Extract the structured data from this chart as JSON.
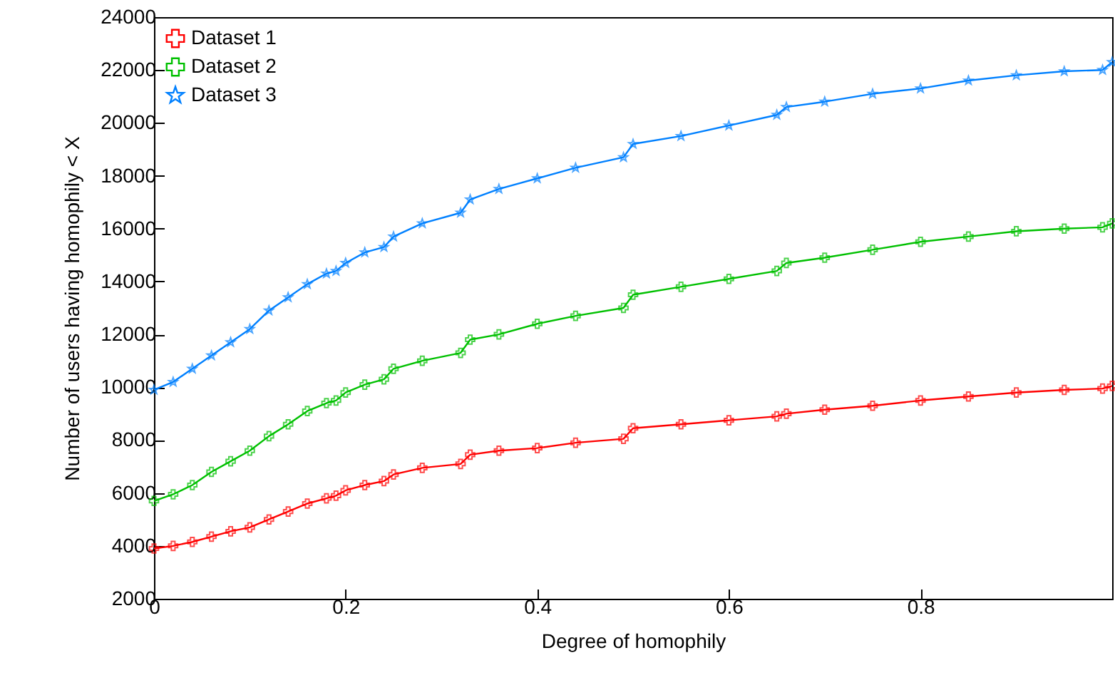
{
  "chart_data": {
    "type": "line",
    "xlabel": "Degree of homophily",
    "ylabel": "Number of users having homophily < X",
    "x": [
      0,
      0.02,
      0.04,
      0.06,
      0.08,
      0.1,
      0.12,
      0.14,
      0.16,
      0.18,
      0.19,
      0.2,
      0.22,
      0.24,
      0.25,
      0.28,
      0.32,
      0.33,
      0.36,
      0.4,
      0.44,
      0.49,
      0.5,
      0.55,
      0.6,
      0.65,
      0.66,
      0.7,
      0.75,
      0.8,
      0.85,
      0.9,
      0.95,
      0.99,
      1.0
    ],
    "series": [
      {
        "name": "Dataset 1",
        "color": "#ff0000",
        "marker": "cross",
        "values": [
          3900,
          4000,
          4150,
          4350,
          4550,
          4700,
          5000,
          5300,
          5600,
          5800,
          5900,
          6100,
          6300,
          6450,
          6700,
          6950,
          7100,
          7450,
          7600,
          7700,
          7900,
          8050,
          8450,
          8600,
          8750,
          8900,
          9000,
          9150,
          9300,
          9500,
          9650,
          9800,
          9900,
          9950,
          10050
        ]
      },
      {
        "name": "Dataset 2",
        "color": "#00c000",
        "marker": "cross",
        "values": [
          5700,
          5950,
          6300,
          6800,
          7200,
          7600,
          8150,
          8600,
          9100,
          9400,
          9500,
          9800,
          10100,
          10300,
          10700,
          11000,
          11300,
          11800,
          12000,
          12400,
          12700,
          13000,
          13500,
          13800,
          14100,
          14400,
          14700,
          14900,
          15200,
          15500,
          15700,
          15900,
          16000,
          16050,
          16200
        ]
      },
      {
        "name": "Dataset 3",
        "color": "#0080ff",
        "marker": "star",
        "values": [
          9900,
          10200,
          10700,
          11200,
          11700,
          12200,
          12900,
          13400,
          13900,
          14300,
          14400,
          14700,
          15100,
          15300,
          15700,
          16200,
          16600,
          17100,
          17500,
          17900,
          18300,
          18700,
          19200,
          19500,
          19900,
          20300,
          20600,
          20800,
          21100,
          21300,
          21600,
          21800,
          21950,
          22000,
          22300
        ]
      }
    ],
    "xlim": [
      0,
      1
    ],
    "xticks": [
      0,
      0.2,
      0.4,
      0.6,
      0.8
    ],
    "ylim": [
      2000,
      24000
    ],
    "yticks": [
      2000,
      4000,
      6000,
      8000,
      10000,
      12000,
      14000,
      16000,
      18000,
      20000,
      22000,
      24000
    ],
    "grid": false,
    "legend": "top left",
    "line_style": "solid"
  }
}
